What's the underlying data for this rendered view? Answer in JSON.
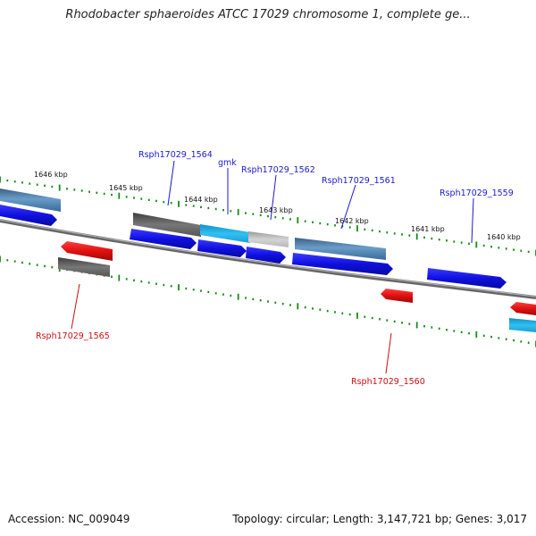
{
  "title": "Rhodobacter sphaeroides ATCC 17029 chromosome 1, complete ge...",
  "footer": {
    "accession": "Accession: NC_009049",
    "stats": "Topology: circular; Length: 3,147,721 bp; Genes: 3,017"
  },
  "ruler": [
    "1646 kbp",
    "1645 kbp",
    "1644 kbp",
    "1643 kbp",
    "1642 kbp",
    "1641 kbp",
    "1640 kbp"
  ],
  "gene_labels": {
    "top": [
      "Rsph17029_1564",
      "gmk",
      "Rsph17029_1562",
      "Rsph17029_1561",
      "Rsph17029_1559"
    ],
    "bottom": [
      "Rsph17029_1565",
      "Rsph17029_1560"
    ]
  },
  "colors": {
    "forward_cds": "#1010e0",
    "reverse_cds": "#e01010",
    "steelblue_gene": "#4a7aa8",
    "gray_gene": "#6a6a6a",
    "cyan_gene": "#18b0e8",
    "light_gray_gene": "#bdbdbd",
    "backbone": "#7a7a7a",
    "tick": "#1a8a1a",
    "forward_label": "#1a1acc",
    "reverse_label": "#cc1010"
  }
}
